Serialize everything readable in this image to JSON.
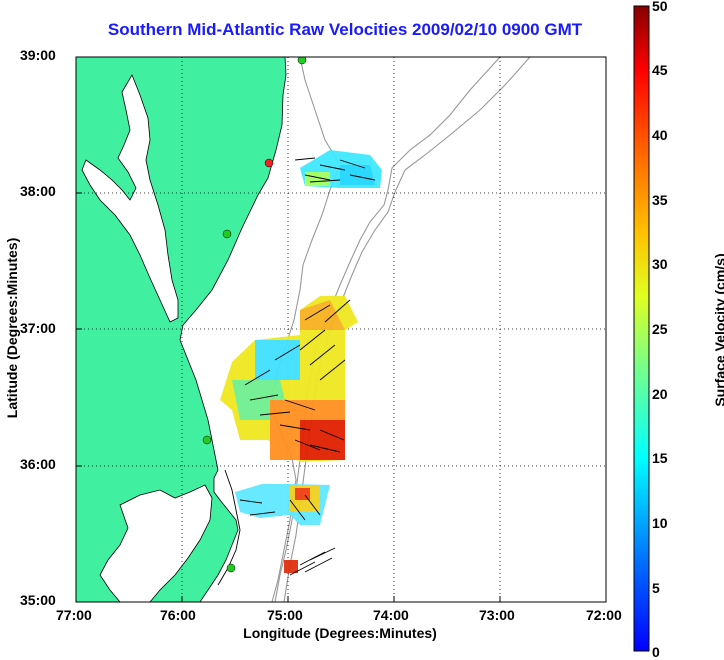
{
  "title": "Southern Mid-Atlantic Raw Velocities 2009/02/10 0900 GMT",
  "xlabel": "Longitude (Degrees:Minutes)",
  "ylabel": "Latitude (Degrees:Minutes)",
  "colorbar": {
    "label": "Surface Velocity (cm/s)",
    "ticks": [
      "0",
      "5",
      "10",
      "15",
      "20",
      "25",
      "30",
      "35",
      "40",
      "45",
      "50"
    ],
    "range": [
      0,
      50
    ]
  },
  "map": {
    "lon_ticks": [
      "77:00",
      "76:00",
      "75:00",
      "74:00",
      "73:00",
      "72:00"
    ],
    "lat_ticks": [
      "39:00",
      "38:00",
      "37:00",
      "36:00",
      "35:00"
    ],
    "lon_range": [
      -77,
      -72
    ],
    "lat_range": [
      35,
      39
    ],
    "land_color": "#40f0a0",
    "grid": "dotted",
    "stations": [
      {
        "lon": -75.1,
        "lat": 38.98,
        "color": "#22cc22"
      },
      {
        "lon": -75.16,
        "lat": 38.22,
        "color": "#ee2222"
      },
      {
        "lon": -75.58,
        "lat": 37.14,
        "color": "#22cc22"
      },
      {
        "lon": -75.7,
        "lat": 36.16,
        "color": "#22cc22"
      },
      {
        "lon": -75.47,
        "lat": 35.24,
        "color": "#22cc22"
      }
    ]
  }
}
